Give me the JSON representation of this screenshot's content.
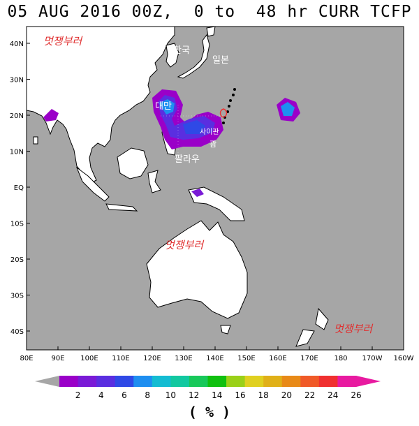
{
  "title": "05 AUG 2016 00Z,  0 to  48 hr CURR TCFP",
  "units": "( % )",
  "colors": {
    "ocean": "#a6a6a6",
    "land": "#ffffff",
    "coast": "#000000",
    "watermark": "#e03030",
    "label": "#ffffff"
  },
  "axes": {
    "lon_ticks": [
      "80E",
      "90E",
      "100E",
      "110E",
      "120E",
      "130E",
      "140E",
      "150E",
      "160E",
      "170E",
      "180",
      "170W",
      "160W"
    ],
    "lat_ticks": [
      "40N",
      "30N",
      "20N",
      "10N",
      "EQ",
      "10S",
      "20S",
      "30S",
      "40S"
    ]
  },
  "map_labels": {
    "korea": "한국",
    "japan": "일본",
    "taiwan": "대만",
    "saipan": "사이판",
    "guam": "괌",
    "palau": "팔라우"
  },
  "watermarks": [
    "멋쟁부러",
    "멋쟁부러",
    "멋쟁부러"
  ],
  "colorbar": {
    "labels": [
      "2",
      "4",
      "6",
      "8",
      "10",
      "12",
      "14",
      "16",
      "18",
      "20",
      "22",
      "24",
      "26"
    ],
    "colors": [
      "#9a00c8",
      "#7a1ad6",
      "#5a2ee0",
      "#2f49e6",
      "#1e8ef0",
      "#14bcd2",
      "#12c8a0",
      "#18c85a",
      "#10c010",
      "#9ad018",
      "#e0d020",
      "#e0b018",
      "#e88a18",
      "#f05a28",
      "#f03030",
      "#e81aa0"
    ]
  }
}
